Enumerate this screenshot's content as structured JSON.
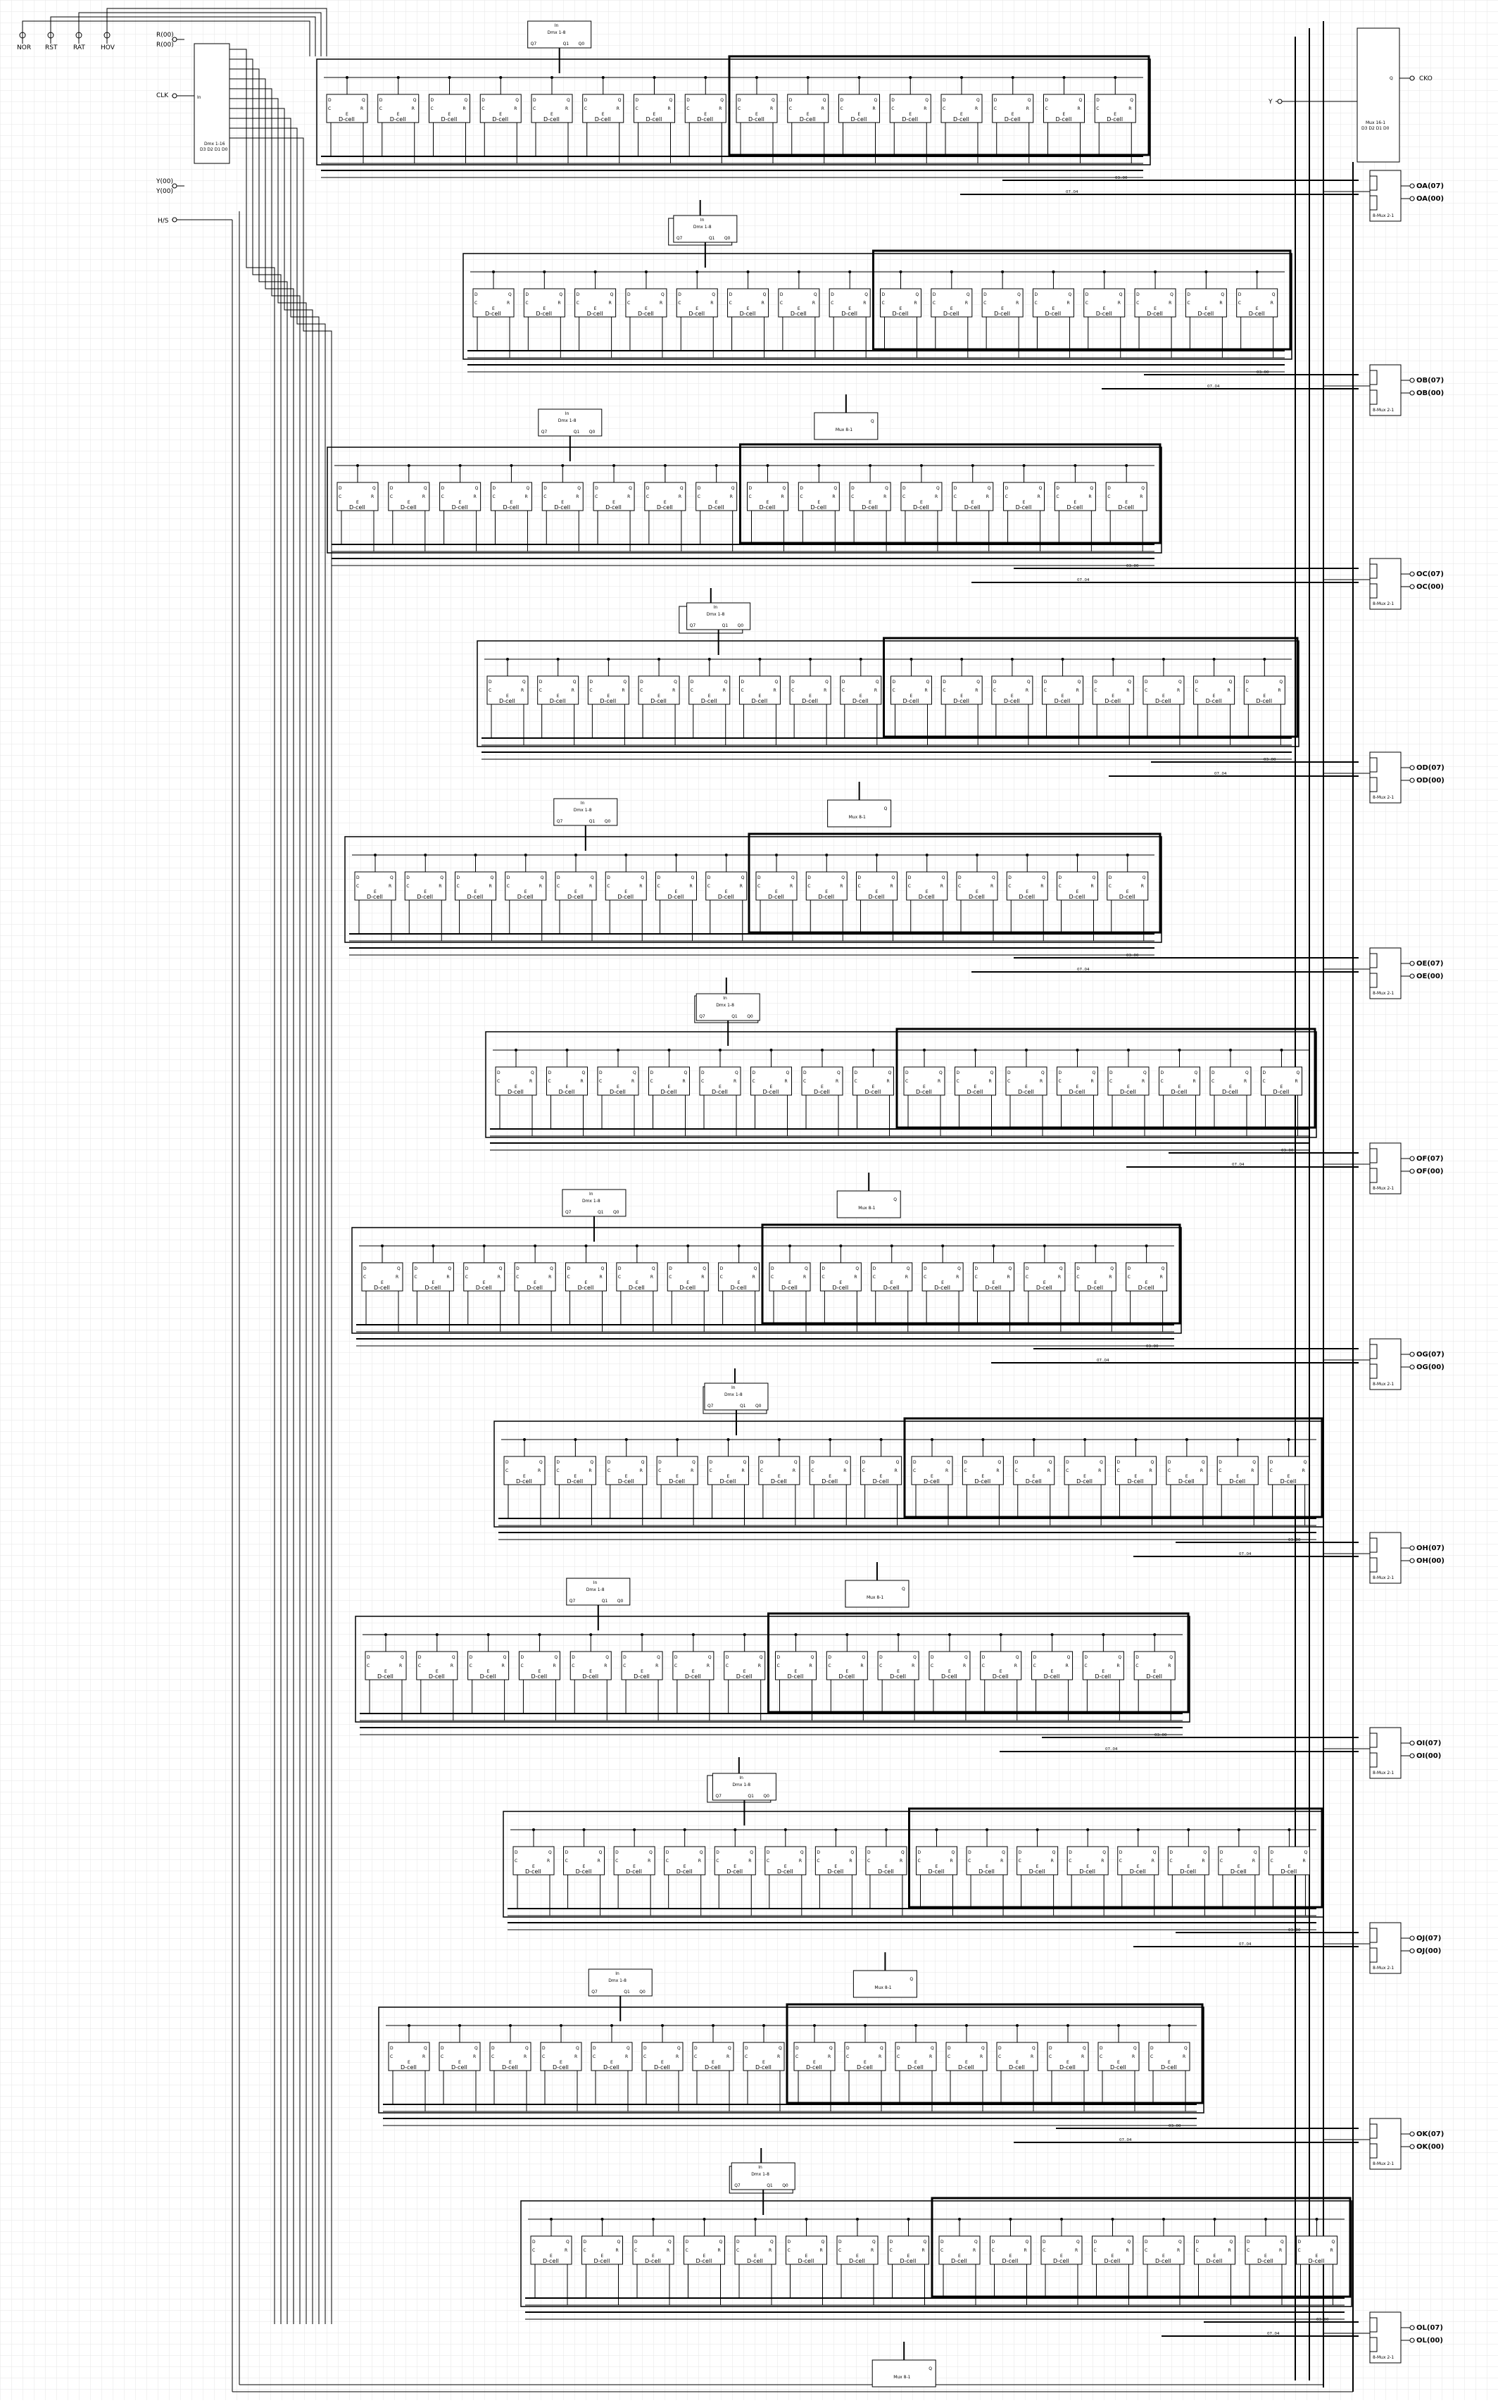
{
  "schematic": {
    "top_inputs": [
      {
        "label": "NOR"
      },
      {
        "label": "RST"
      },
      {
        "label": "RAT"
      },
      {
        "label": "HOV"
      }
    ],
    "left_inputs": [
      {
        "label": "R(00)"
      },
      {
        "label": "R(00)"
      },
      {
        "label": "CLK"
      },
      {
        "label": "Y(00)"
      },
      {
        "label": "Y(00)"
      },
      {
        "label": "H/S"
      }
    ],
    "main_demux": {
      "title": "Dmx 1-16",
      "sub": "D3 D2 D1 D0",
      "pins": [
        "Q0",
        "Q1",
        "Q2",
        "Q3",
        "Q4",
        "Q5",
        "Q6",
        "Q7",
        "Q8",
        "Q9",
        "Q10",
        "Q11",
        "Q12",
        "Q13",
        "Q14",
        "Q15"
      ],
      "input_pin": "In"
    },
    "top_right_mux": {
      "title": "Mux 16-1",
      "sub": "D3 D2 D1 D0",
      "out_pin": "Q",
      "output_label": "CKO",
      "in_label": "Y"
    },
    "cell": {
      "name": "D-cell",
      "pins": [
        "D",
        "C",
        "Q",
        "R",
        "E"
      ]
    },
    "block_demux": {
      "title": "Dmx 1-8",
      "in": "In",
      "pins": [
        "Q7",
        "Q1",
        "Q0"
      ]
    },
    "block_mux": {
      "title": "Mux 8-1",
      "out": "Q"
    },
    "out_mux": {
      "title": "8-Mux 2-1"
    },
    "block_sig": [
      "03..00",
      "07..04"
    ],
    "outputs": [
      {
        "a": "OA(07)",
        "b": "OA(00)"
      },
      {
        "a": "OB(07)",
        "b": "OB(00)"
      },
      {
        "a": "OC(07)",
        "b": "OC(00)"
      },
      {
        "a": "OD(07)",
        "b": "OD(00)"
      },
      {
        "a": "OE(07)",
        "b": "OE(00)"
      },
      {
        "a": "OF(07)",
        "b": "OF(00)"
      },
      {
        "a": "OG(07)",
        "b": "OG(00)"
      },
      {
        "a": "OH(07)",
        "b": "OH(00)"
      },
      {
        "a": "OI(07)",
        "b": "OI(00)"
      },
      {
        "a": "OJ(07)",
        "b": "OJ(00)"
      },
      {
        "a": "OK(07)",
        "b": "OK(00)"
      },
      {
        "a": "OL(07)",
        "b": "OL(00)"
      }
    ]
  }
}
